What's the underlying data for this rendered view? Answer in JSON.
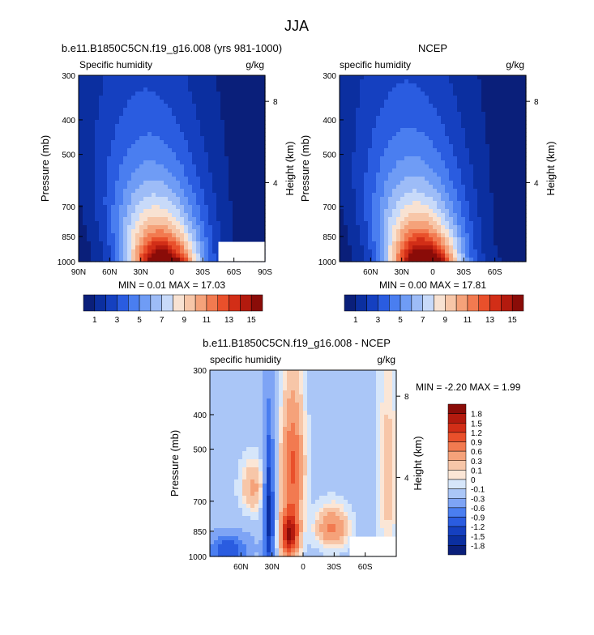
{
  "figure": {
    "title": "JJA"
  },
  "palette": {
    "sequential": [
      "#0a1f7a",
      "#0b2fa0",
      "#1540c0",
      "#2a5ce0",
      "#4a7ef0",
      "#6f9cf5",
      "#9dbcf7",
      "#c8daf9",
      "#f8e2d2",
      "#f7c6a8",
      "#f5a27a",
      "#f27a50",
      "#e9502b",
      "#d22e17",
      "#b31a0e",
      "#8a0c08"
    ],
    "diverging": [
      "#0a1f7a",
      "#0b2fa0",
      "#1540c0",
      "#2a5ce0",
      "#4a7ef0",
      "#7ea4f5",
      "#aac6f7",
      "#d6e6fa",
      "#fbe6d6",
      "#f7c6a8",
      "#f5a27a",
      "#f27a50",
      "#e9502b",
      "#d22e17",
      "#b31a0e",
      "#8a0c08"
    ]
  },
  "chart_data": [
    {
      "type": "heatmap",
      "id": "model",
      "header_title": "b.e11.B1850C5CN.f19_g16.008 (yrs 981-1000)",
      "left_label": "Specific humidity",
      "right_label": "g/kg",
      "xlabel": "",
      "ylabel": "Pressure (mb)",
      "ylabel_right": "Height (km)",
      "x_ticks": [
        "90N",
        "60N",
        "30N",
        "0",
        "30S",
        "60S",
        "90S"
      ],
      "x_tick_lat": [
        90,
        60,
        30,
        0,
        -30,
        -60,
        -90
      ],
      "xlim": [
        90,
        -90
      ],
      "y_ticks": [
        "300",
        "400",
        "500",
        "700",
        "850",
        "1000"
      ],
      "y_tick_values": [
        300,
        400,
        500,
        700,
        850,
        1000
      ],
      "ylim": [
        300,
        1000
      ],
      "height_ticks": [
        "8",
        "4"
      ],
      "height_tick_pressures": [
        355,
        600
      ],
      "field": {
        "peak": 17.03,
        "peak_lat": 8,
        "peak_width": 24,
        "base_width": 40,
        "tilt": 18,
        "scale_height": 0.55
      },
      "missing_region": [
        {
          "lat_from": -45,
          "lat_to": -90,
          "p_from": 880,
          "p_to": 1000
        }
      ],
      "stats": "MIN =  0.01  MAX = 17.03",
      "colorbar_labels": [
        "1",
        "3",
        "5",
        "7",
        "9",
        "11",
        "13",
        "15"
      ],
      "levels": [
        1,
        2,
        3,
        4,
        5,
        6,
        7,
        8,
        9,
        10,
        11,
        12,
        13,
        14,
        15
      ]
    },
    {
      "type": "heatmap",
      "id": "ncep",
      "header_title": "NCEP",
      "left_label": "specific humidity",
      "right_label": "g/kg",
      "xlabel": "",
      "ylabel": "Pressure (mb)",
      "ylabel_right": "Height (km)",
      "x_ticks": [
        "60N",
        "30N",
        "0",
        "30S",
        "60S"
      ],
      "x_tick_lat": [
        60,
        30,
        0,
        -30,
        -60
      ],
      "xlim": [
        90,
        -90
      ],
      "y_ticks": [
        "300",
        "400",
        "500",
        "700",
        "850",
        "1000"
      ],
      "y_tick_values": [
        300,
        400,
        500,
        700,
        850,
        1000
      ],
      "ylim": [
        300,
        1000
      ],
      "height_ticks": [
        "8",
        "4"
      ],
      "height_tick_pressures": [
        355,
        600
      ],
      "field": {
        "peak": 17.81,
        "peak_lat": 8,
        "peak_width": 24,
        "base_width": 40,
        "tilt": 18,
        "scale_height": 0.55
      },
      "missing_region": [],
      "stats": "MIN =  0.00  MAX = 17.81",
      "colorbar_labels": [
        "1",
        "3",
        "5",
        "7",
        "9",
        "11",
        "13",
        "15"
      ],
      "levels": [
        1,
        2,
        3,
        4,
        5,
        6,
        7,
        8,
        9,
        10,
        11,
        12,
        13,
        14,
        15
      ]
    },
    {
      "type": "heatmap",
      "id": "diff",
      "header_title": "b.e11.B1850C5CN.f19_g16.008 - NCEP",
      "left_label": "specific humidity",
      "right_label": "g/kg",
      "xlabel": "",
      "ylabel": "Pressure (mb)",
      "ylabel_right": "Height (km)",
      "x_ticks": [
        "60N",
        "30N",
        "0",
        "30S",
        "60S"
      ],
      "x_tick_lat": [
        60,
        30,
        0,
        -30,
        -60
      ],
      "xlim": [
        90,
        -90
      ],
      "y_ticks": [
        "300",
        "400",
        "500",
        "700",
        "850",
        "1000"
      ],
      "y_tick_values": [
        300,
        400,
        500,
        700,
        850,
        1000
      ],
      "ylim": [
        300,
        1000
      ],
      "height_ticks": [
        "8",
        "4"
      ],
      "height_tick_pressures": [
        355,
        600
      ],
      "missing_region": [
        {
          "lat_from": -45,
          "lat_to": -90,
          "p_from": 880,
          "p_to": 1000
        }
      ],
      "stats": "MIN =  -2.20  MAX =  1.99",
      "colorbar_labels": [
        "1.8",
        "1.5",
        "1.2",
        "0.9",
        "0.6",
        "0.3",
        "0.1",
        "0",
        "-0.1",
        "-0.3",
        "-0.6",
        "-0.9",
        "-1.2",
        "-1.5",
        "-1.8"
      ],
      "levels": [
        -1.8,
        -1.5,
        -1.2,
        -0.9,
        -0.6,
        -0.3,
        -0.1,
        0,
        0.1,
        0.3,
        0.6,
        0.9,
        1.2,
        1.5,
        1.8
      ]
    }
  ]
}
